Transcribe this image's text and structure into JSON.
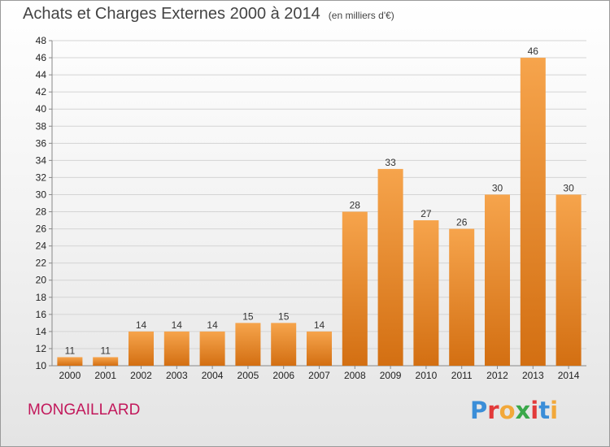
{
  "title": "Achats et Charges Externes 2000 à 2014",
  "unit_note": "(en milliers d'€)",
  "commune": "MONGAILLARD",
  "logo": {
    "letters": [
      "P",
      "r",
      "o",
      "x",
      "i",
      "t",
      "i"
    ],
    "colors": [
      "#3b8ed8",
      "#e23a3a",
      "#f2a83a",
      "#3aa84a",
      "#e23a3a",
      "#3b8ed8",
      "#f2a83a"
    ]
  },
  "colors": {
    "bar_top": "#f6a44c",
    "bar_bottom": "#d36f12",
    "commune_text": "#c2185b"
  },
  "chart_data": {
    "type": "bar",
    "categories": [
      "2000",
      "2001",
      "2002",
      "2003",
      "2004",
      "2005",
      "2006",
      "2007",
      "2008",
      "2009",
      "2010",
      "2011",
      "2012",
      "2013",
      "2014"
    ],
    "values": [
      11,
      11,
      14,
      14,
      14,
      15,
      15,
      14,
      28,
      33,
      27,
      26,
      30,
      46,
      30
    ],
    "yticks": [
      10,
      12,
      14,
      16,
      18,
      20,
      22,
      24,
      26,
      28,
      30,
      32,
      34,
      36,
      38,
      40,
      42,
      44,
      46,
      48
    ],
    "ylim": [
      10,
      48
    ],
    "grid": true,
    "legend": "none"
  }
}
